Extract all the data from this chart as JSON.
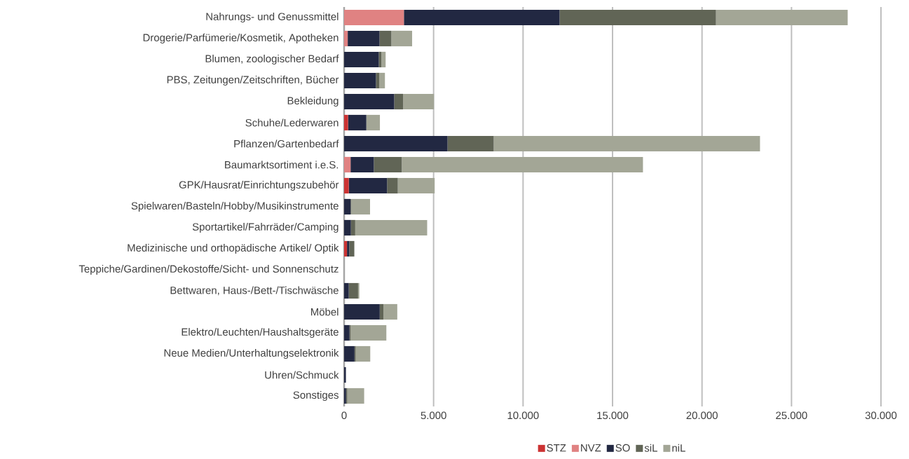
{
  "chart_data": {
    "type": "bar",
    "orientation": "horizontal",
    "stacked": true,
    "grid": "x",
    "legend": "bottom",
    "categories": [
      "Nahrungs- und Genussmittel",
      "Drogerie/Parfümerie/Kosmetik, Apotheken",
      "Blumen, zoologischer Bedarf",
      "PBS, Zeitungen/Zeitschriften, Bücher",
      "Bekleidung",
      "Schuhe/Lederwaren",
      "Pflanzen/Gartenbedarf",
      "Baumarktsortiment i.e.S.",
      "GPK/Hausrat/Einrichtungszubehör",
      "Spielwaren/Basteln/Hobby/Musikinstrumente",
      "Sportartikel/Fahrräder/Camping",
      "Medizinische und orthopädische Artikel/ Optik",
      "Teppiche/Gardinen/Dekostoffe/Sicht- und Sonnenschutz",
      "Bettwaren, Haus-/Bett-/Tischwäsche",
      "Möbel",
      "Elektro/Leuchten/Haushaltsgeräte",
      "Neue Medien/Unterhaltungselektronik",
      "Uhren/Schmuck",
      "Sonstiges"
    ],
    "series": [
      {
        "name": "STZ",
        "color": "#cc3333",
        "values": [
          0,
          0,
          0,
          0,
          0,
          220,
          0,
          0,
          260,
          0,
          0,
          160,
          0,
          0,
          0,
          0,
          0,
          0,
          0
        ]
      },
      {
        "name": "NVZ",
        "color": "#e08282",
        "values": [
          3340,
          200,
          0,
          0,
          0,
          0,
          0,
          360,
          0,
          0,
          0,
          0,
          0,
          0,
          0,
          0,
          0,
          0,
          0
        ]
      },
      {
        "name": "SO",
        "color": "#222842",
        "values": [
          8700,
          1780,
          1940,
          1780,
          2800,
          1020,
          5780,
          1300,
          2140,
          360,
          380,
          130,
          0,
          260,
          1990,
          300,
          580,
          100,
          110
        ]
      },
      {
        "name": "siL",
        "color": "#616556",
        "values": [
          8740,
          660,
          140,
          180,
          500,
          0,
          2580,
          1560,
          600,
          40,
          240,
          280,
          0,
          520,
          210,
          70,
          70,
          0,
          70
        ]
      },
      {
        "name": "niL",
        "color": "#a3a696",
        "values": [
          7360,
          1160,
          240,
          320,
          1720,
          760,
          14880,
          13480,
          2060,
          1050,
          4020,
          0,
          0,
          70,
          770,
          1990,
          810,
          0,
          940
        ]
      }
    ],
    "xlim": [
      0,
      30000
    ],
    "xticks": [
      0,
      {
        "value": 5000,
        "label": "5.000"
      },
      {
        "value": 10000,
        "label": "10.000"
      },
      {
        "value": 15000,
        "label": "15.000"
      },
      {
        "value": 20000,
        "label": "20.000"
      },
      {
        "value": 25000,
        "label": "25.000"
      },
      {
        "value": 30000,
        "label": "30.000"
      }
    ]
  }
}
